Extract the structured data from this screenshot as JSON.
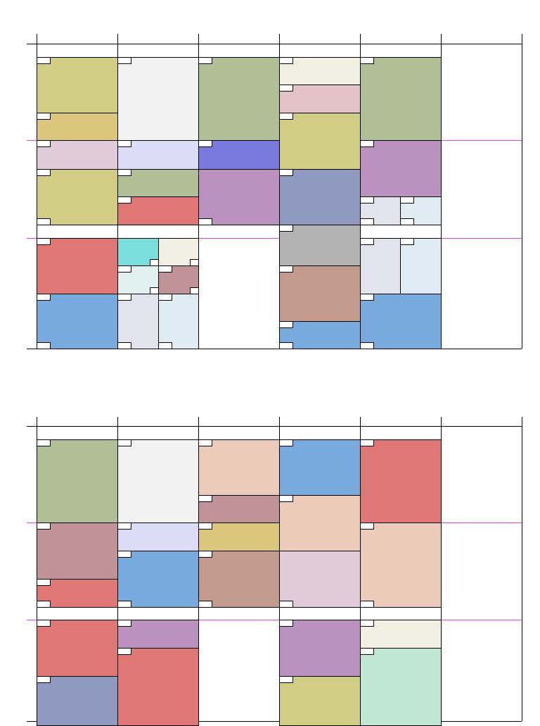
{
  "colors": {
    "olive": "#d1cd85",
    "mustard": "#dcc57d",
    "sage": "#b0bf96",
    "light_gray": "#f2f2f2",
    "cream": "#f2efe3",
    "pink_light": "#e3c3c7",
    "mauve_light": "#e0cbd8",
    "lavender": "#dcdcf7",
    "blue_violet": "#7878dd",
    "purple": "#bb92bf",
    "slate": "#9099bf",
    "coral": "#de7776",
    "cyan": "#7adedc",
    "mint_light": "#e0f1f0",
    "rose_brown": "#c09399",
    "gray": "#b3b3b3",
    "taupe": "#c29a8e",
    "blue": "#78aadd",
    "pale_blue": "#dfecf3",
    "gray_lavender": "#e3e3ee",
    "peach": "#edcbbb",
    "mint": "#c0e7d3",
    "magenta_line": "#e040e0"
  },
  "panels": [
    {
      "name": "top",
      "blocks": [
        {
          "color": "olive"
        },
        {
          "color": "mustard"
        },
        {
          "color": "mauve_light"
        },
        {
          "color": "olive"
        },
        {
          "color": "coral"
        },
        {
          "color": "blue"
        },
        {
          "color": "light_gray"
        },
        {
          "color": "lavender"
        },
        {
          "color": "sage"
        },
        {
          "color": "coral"
        },
        {
          "color": "cyan"
        },
        {
          "color": "cream"
        },
        {
          "color": "mint_light"
        },
        {
          "color": "rose_brown"
        },
        {
          "color": "gray_lavender"
        },
        {
          "color": "pale_blue"
        },
        {
          "color": "sage"
        },
        {
          "color": "blue_violet"
        },
        {
          "color": "purple"
        },
        {
          "color": "cream"
        },
        {
          "color": "pink_light"
        },
        {
          "color": "olive"
        },
        {
          "color": "slate"
        },
        {
          "color": "gray"
        },
        {
          "color": "taupe"
        },
        {
          "color": "blue"
        },
        {
          "color": "sage"
        },
        {
          "color": "purple"
        },
        {
          "color": "gray_lavender"
        },
        {
          "color": "pale_blue"
        },
        {
          "color": "gray_lavender"
        },
        {
          "color": "pale_blue"
        },
        {
          "color": "blue"
        }
      ]
    },
    {
      "name": "bottom",
      "blocks": [
        {
          "color": "sage"
        },
        {
          "color": "rose_brown"
        },
        {
          "color": "coral"
        },
        {
          "color": "coral"
        },
        {
          "color": "slate"
        },
        {
          "color": "light_gray"
        },
        {
          "color": "lavender"
        },
        {
          "color": "blue"
        },
        {
          "color": "purple"
        },
        {
          "color": "coral"
        },
        {
          "color": "peach"
        },
        {
          "color": "rose_brown"
        },
        {
          "color": "mustard"
        },
        {
          "color": "taupe"
        },
        {
          "color": "blue"
        },
        {
          "color": "peach"
        },
        {
          "color": "mauve_light"
        },
        {
          "color": "purple"
        },
        {
          "color": "olive"
        },
        {
          "color": "coral"
        },
        {
          "color": "peach"
        },
        {
          "color": "cream"
        },
        {
          "color": "mint"
        }
      ]
    }
  ]
}
